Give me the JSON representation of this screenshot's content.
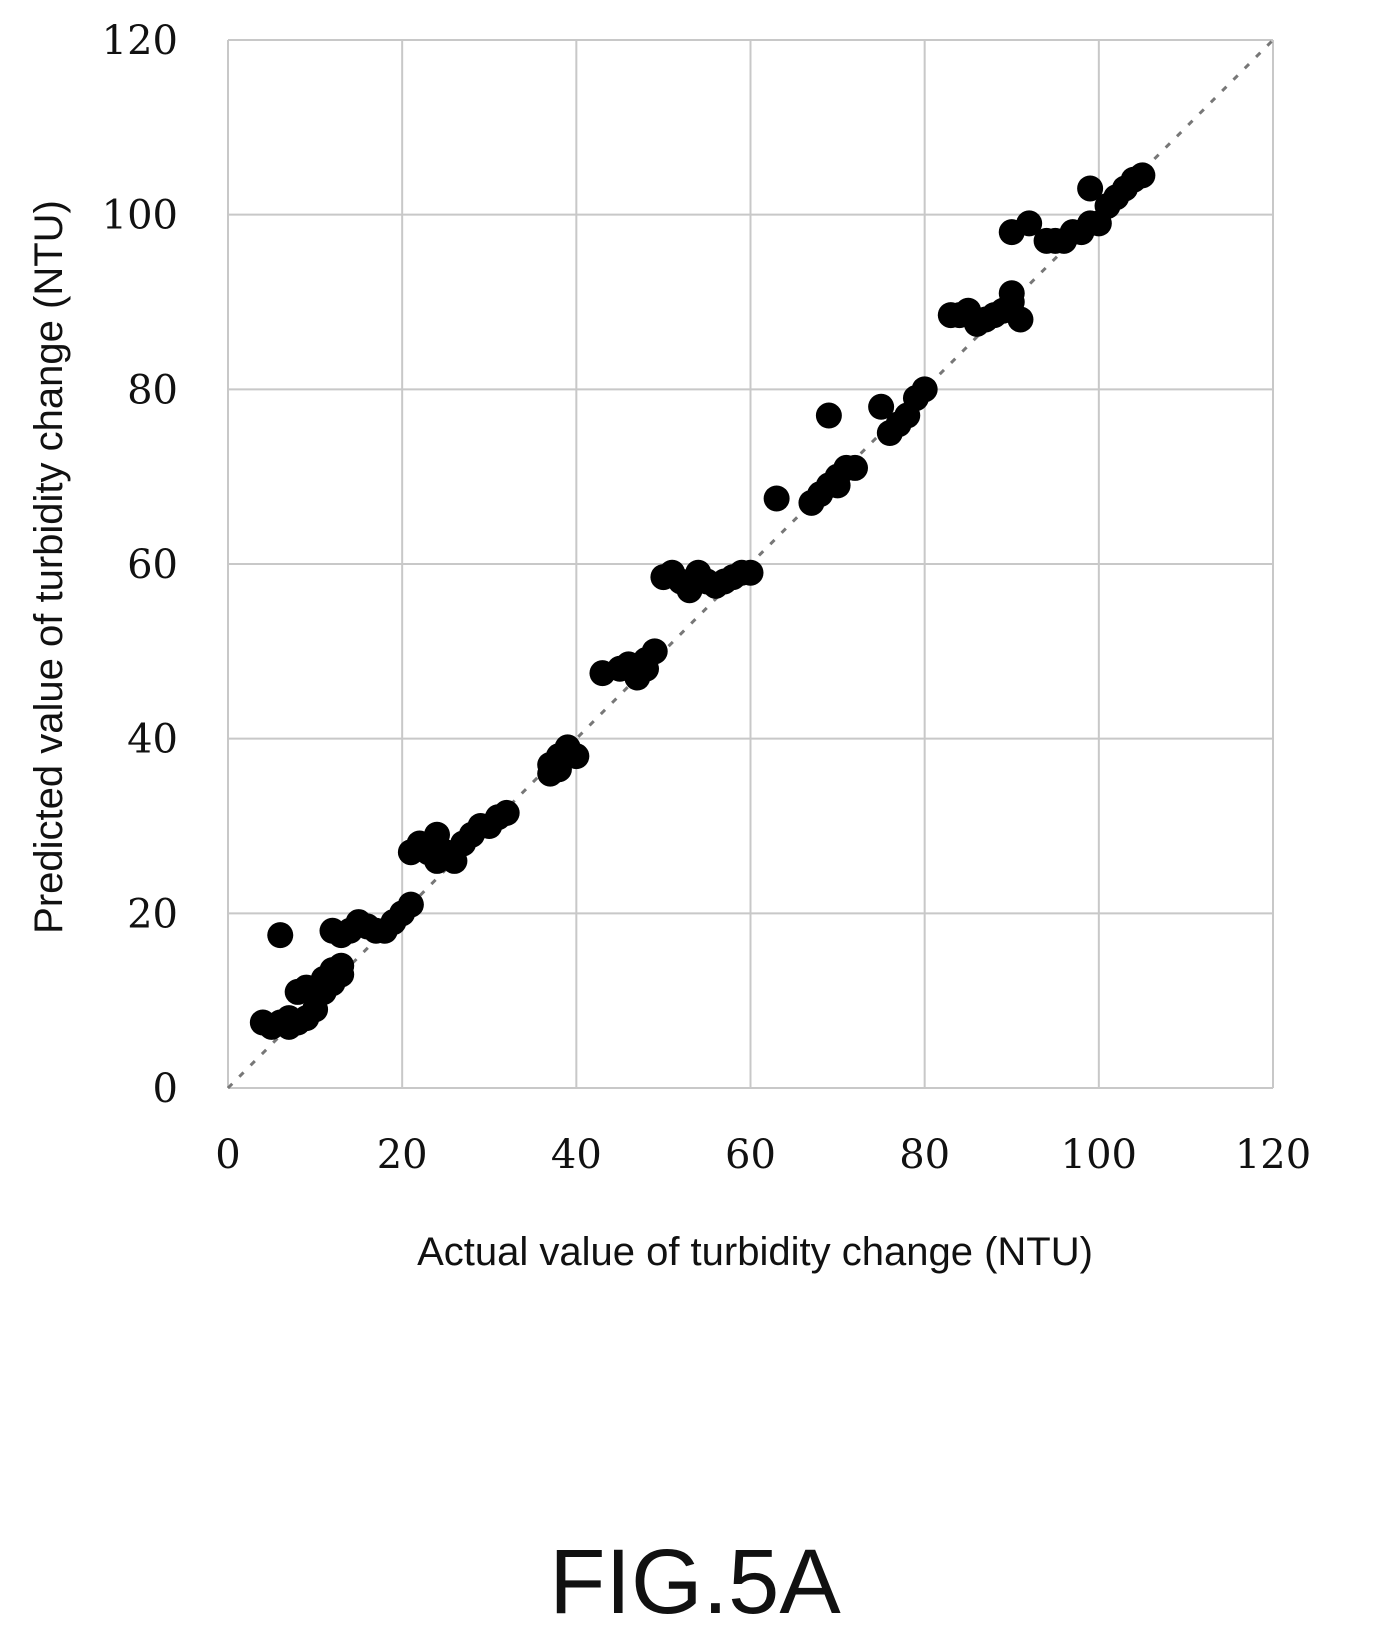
{
  "figure_label": "FIG.5A",
  "chart_data": {
    "type": "scatter",
    "xlabel": "Actual value of turbidity change (NTU)",
    "ylabel": "Predicted value of turbidity change (NTU)",
    "xlim": [
      0,
      120
    ],
    "ylim": [
      0,
      120
    ],
    "xticks": [
      0,
      20,
      40,
      60,
      80,
      100,
      120
    ],
    "yticks": [
      0,
      20,
      40,
      60,
      80,
      100,
      120
    ],
    "grid": true,
    "reference_line": {
      "from": [
        0,
        0
      ],
      "to": [
        120,
        120
      ],
      "style": "dashed"
    },
    "points": [
      [
        4,
        7.5
      ],
      [
        5,
        7
      ],
      [
        6,
        7.5
      ],
      [
        7,
        7
      ],
      [
        7,
        8
      ],
      [
        8,
        7.5
      ],
      [
        6,
        17.5
      ],
      [
        8,
        11
      ],
      [
        9,
        11.5
      ],
      [
        9,
        8
      ],
      [
        10,
        9
      ],
      [
        10,
        10.5
      ],
      [
        11,
        11
      ],
      [
        11,
        12.5
      ],
      [
        12,
        12
      ],
      [
        12,
        13.5
      ],
      [
        13,
        13
      ],
      [
        13,
        14
      ],
      [
        12,
        18
      ],
      [
        13,
        17.5
      ],
      [
        14,
        18
      ],
      [
        15,
        19
      ],
      [
        16,
        18.5
      ],
      [
        17,
        18
      ],
      [
        18,
        18
      ],
      [
        19,
        19
      ],
      [
        20,
        20
      ],
      [
        21,
        21
      ],
      [
        21,
        27
      ],
      [
        22,
        28
      ],
      [
        23,
        27
      ],
      [
        24,
        26
      ],
      [
        24,
        29
      ],
      [
        25,
        27
      ],
      [
        26,
        26
      ],
      [
        27,
        28
      ],
      [
        28,
        29
      ],
      [
        29,
        30
      ],
      [
        30,
        30
      ],
      [
        31,
        31
      ],
      [
        32,
        31.5
      ],
      [
        37,
        36
      ],
      [
        37,
        37
      ],
      [
        38,
        38
      ],
      [
        38,
        36.5
      ],
      [
        39,
        39
      ],
      [
        40,
        38
      ],
      [
        43,
        47.5
      ],
      [
        45,
        48
      ],
      [
        46,
        48.5
      ],
      [
        47,
        47
      ],
      [
        48,
        48
      ],
      [
        48,
        49
      ],
      [
        49,
        50
      ],
      [
        50,
        58.5
      ],
      [
        51,
        59
      ],
      [
        52,
        58
      ],
      [
        53,
        57
      ],
      [
        54,
        59
      ],
      [
        55,
        58
      ],
      [
        56,
        57.5
      ],
      [
        57,
        58
      ],
      [
        58,
        58.5
      ],
      [
        59,
        59
      ],
      [
        60,
        59
      ],
      [
        63,
        67.5
      ],
      [
        67,
        67
      ],
      [
        68,
        68
      ],
      [
        69,
        69
      ],
      [
        70,
        69
      ],
      [
        70,
        70
      ],
      [
        71,
        71
      ],
      [
        72,
        71
      ],
      [
        69,
        77
      ],
      [
        75,
        78
      ],
      [
        76,
        75
      ],
      [
        77,
        76
      ],
      [
        78,
        77
      ],
      [
        79,
        79
      ],
      [
        80,
        80
      ],
      [
        83,
        88.5
      ],
      [
        84,
        88.5
      ],
      [
        85,
        89
      ],
      [
        86,
        87.5
      ],
      [
        87,
        88
      ],
      [
        88,
        88.5
      ],
      [
        89,
        89
      ],
      [
        90,
        90
      ],
      [
        90,
        91
      ],
      [
        91,
        88
      ],
      [
        90,
        98
      ],
      [
        92,
        99
      ],
      [
        94,
        97
      ],
      [
        95,
        97
      ],
      [
        96,
        97
      ],
      [
        97,
        98
      ],
      [
        98,
        98
      ],
      [
        99,
        99
      ],
      [
        99,
        103
      ],
      [
        100,
        99
      ],
      [
        101,
        101
      ],
      [
        102,
        102
      ],
      [
        103,
        103
      ],
      [
        104,
        104
      ],
      [
        105,
        104.5
      ]
    ]
  }
}
